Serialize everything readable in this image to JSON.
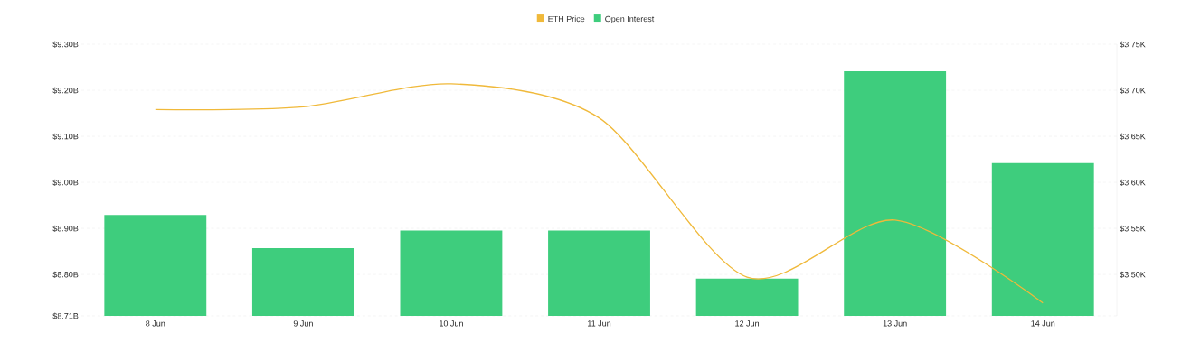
{
  "chart_data": {
    "type": "bar",
    "categories": [
      "8 Jun",
      "9 Jun",
      "10 Jun",
      "11 Jun",
      "12 Jun",
      "13 Jun",
      "14 Jun"
    ],
    "series": [
      {
        "name": "ETH Price",
        "type": "line",
        "axis": "y2",
        "color": "#f0b93a",
        "values": [
          3679,
          3682,
          3707,
          3670,
          3497,
          3559,
          3469
        ]
      },
      {
        "name": "Open Interest",
        "color": "#3ecd7d",
        "values": [
          8.929,
          8.857,
          8.895,
          8.895,
          8.791,
          9.241,
          9.042
        ]
      }
    ],
    "ylim": [
      8.71,
      9.3
    ],
    "yticks": [
      {
        "value": 8.71,
        "label": "$8.71B"
      },
      {
        "value": 8.8,
        "label": "$8.80B"
      },
      {
        "value": 8.9,
        "label": "$8.90B"
      },
      {
        "value": 9.0,
        "label": "$9.00B"
      },
      {
        "value": 9.1,
        "label": "$9.10B"
      },
      {
        "value": 9.2,
        "label": "$9.20B"
      },
      {
        "value": 9.3,
        "label": "$9.30B"
      }
    ],
    "y2lim": [
      3455,
      3750
    ],
    "y2ticks": [
      {
        "value": 3500,
        "label": "$3.50K"
      },
      {
        "value": 3550,
        "label": "$3.55K"
      },
      {
        "value": 3600,
        "label": "$3.60K"
      },
      {
        "value": 3650,
        "label": "$3.65K"
      },
      {
        "value": 3700,
        "label": "$3.70K"
      },
      {
        "value": 3750,
        "label": "$3.75K"
      }
    ],
    "grid": "y",
    "legend": "top"
  }
}
